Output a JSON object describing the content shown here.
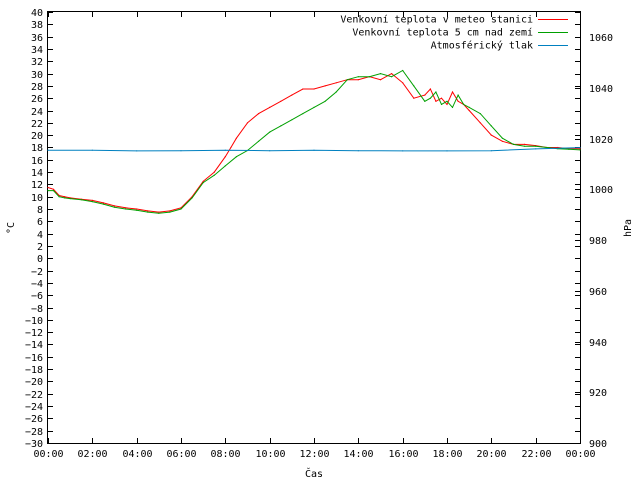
{
  "chart_data": {
    "type": "line",
    "xlabel": "Čas",
    "ylabel": "°C",
    "y2label": "hPa",
    "legend_position": "top-right",
    "x_ticks": [
      "00:00",
      "02:00",
      "04:00",
      "06:00",
      "08:00",
      "10:00",
      "12:00",
      "14:00",
      "16:00",
      "18:00",
      "20:00",
      "22:00",
      "00:00"
    ],
    "ylim": [
      -30,
      40
    ],
    "y_ticks": [
      -30,
      -28,
      -26,
      -24,
      -22,
      -20,
      -18,
      -16,
      -14,
      -12,
      -10,
      -8,
      -6,
      -4,
      -2,
      0,
      2,
      4,
      6,
      8,
      10,
      12,
      14,
      16,
      18,
      20,
      22,
      24,
      26,
      28,
      30,
      32,
      34,
      36,
      38,
      40
    ],
    "y2lim": [
      900,
      1070
    ],
    "y2_ticks": [
      900,
      920,
      940,
      960,
      980,
      1000,
      1020,
      1040,
      1060
    ],
    "xlim_hours": [
      0,
      24
    ],
    "series": [
      {
        "name": "Venkovní teplota v meteo stanici",
        "color": "#ff0000",
        "axis": "left",
        "x": [
          0,
          0.25,
          0.5,
          0.75,
          1,
          1.5,
          2,
          2.5,
          3,
          3.5,
          4,
          4.5,
          5,
          5.5,
          6,
          6.5,
          7,
          7.5,
          8,
          8.25,
          8.5,
          9,
          9.5,
          10,
          10.5,
          11,
          11.5,
          12,
          12.5,
          13,
          13.5,
          14,
          14.5,
          15,
          15.5,
          16,
          16.5,
          17,
          17.25,
          17.5,
          17.75,
          18,
          18.25,
          18.5,
          18.75,
          19,
          19.5,
          20,
          20.5,
          21,
          21.5,
          22,
          22.5,
          23,
          23.5,
          24
        ],
        "values": [
          11.5,
          11.2,
          10.2,
          10.0,
          9.8,
          9.6,
          9.4,
          9.0,
          8.5,
          8.2,
          8.0,
          7.7,
          7.5,
          7.7,
          8.2,
          10.0,
          12.5,
          14.0,
          16.5,
          18.0,
          19.5,
          22.0,
          23.5,
          24.5,
          25.5,
          26.5,
          27.5,
          27.5,
          28.0,
          28.5,
          29.0,
          29.0,
          29.5,
          29.0,
          30.0,
          28.5,
          26.0,
          26.5,
          27.5,
          25.5,
          26.0,
          25.0,
          27.0,
          25.5,
          25.0,
          24.0,
          22.0,
          20.0,
          19.0,
          18.5,
          18.5,
          18.3,
          18.0,
          18.0,
          17.8,
          17.8
        ]
      },
      {
        "name": "Venkovní teplota 5 cm nad zemí",
        "color": "#00a000",
        "axis": "left",
        "x": [
          0,
          0.25,
          0.5,
          0.75,
          1,
          1.5,
          2,
          2.5,
          3,
          3.5,
          4,
          4.5,
          5,
          5.5,
          6,
          6.5,
          7,
          7.5,
          8,
          8.5,
          9,
          9.5,
          10,
          10.5,
          11,
          11.5,
          12,
          12.5,
          13,
          13.5,
          14,
          14.5,
          15,
          15.5,
          16,
          16.5,
          17,
          17.25,
          17.5,
          17.75,
          18,
          18.25,
          18.5,
          18.75,
          19,
          19.5,
          20,
          20.5,
          21,
          21.5,
          22,
          22.5,
          23,
          23.5,
          24
        ],
        "values": [
          11.0,
          11.0,
          10.0,
          9.8,
          9.7,
          9.5,
          9.2,
          8.8,
          8.3,
          8.0,
          7.8,
          7.5,
          7.3,
          7.5,
          8.0,
          9.8,
          12.3,
          13.5,
          15.0,
          16.5,
          17.5,
          19.0,
          20.5,
          21.5,
          22.5,
          23.5,
          24.5,
          25.5,
          27.0,
          29.0,
          29.5,
          29.5,
          30.0,
          29.5,
          30.5,
          28.0,
          25.5,
          26.0,
          27.0,
          25.0,
          25.5,
          24.5,
          26.5,
          25.0,
          24.5,
          23.5,
          21.5,
          19.5,
          18.5,
          18.2,
          18.2,
          18.0,
          17.8,
          17.7,
          17.6
        ]
      },
      {
        "name": "Atmosférický tlak",
        "color": "#0080c0",
        "axis": "right",
        "x": [
          0,
          2,
          4,
          6,
          8,
          10,
          12,
          14,
          16,
          18,
          20,
          22,
          24
        ],
        "values": [
          1015.5,
          1015.5,
          1015.2,
          1015.3,
          1015.5,
          1015.3,
          1015.5,
          1015.3,
          1015.2,
          1015.2,
          1015.3,
          1016.0,
          1016.5
        ]
      }
    ]
  }
}
